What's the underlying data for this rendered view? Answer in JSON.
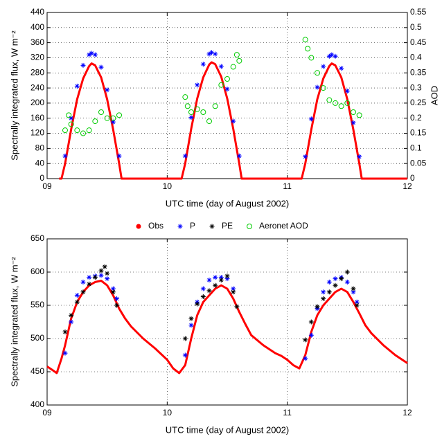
{
  "chart_data": [
    {
      "type": "line",
      "ylabel": "Spectrally integrated flux, W m⁻²",
      "xlabel": "UTC time (day of August 2002)",
      "y2label": "AOD",
      "grid": true,
      "xlim": [
        9,
        12
      ],
      "xticks": [
        {
          "value": 9,
          "label": "09"
        },
        {
          "value": 10,
          "label": "10"
        },
        {
          "value": 11,
          "label": "11"
        },
        {
          "value": 12,
          "label": "12"
        }
      ],
      "ylim": [
        0,
        440
      ],
      "yticks": [
        0,
        40,
        80,
        120,
        160,
        200,
        240,
        280,
        320,
        360,
        400,
        440
      ],
      "y2lim": [
        0,
        0.55
      ],
      "y2ticks": [
        0,
        0.05,
        0.1,
        0.15,
        0.2,
        0.25,
        0.3,
        0.35,
        0.4,
        0.45,
        0.5,
        0.55
      ],
      "series": [
        {
          "color": "#ff0000",
          "marker": "line",
          "x": [
            9.0,
            9.05,
            9.1,
            9.12,
            9.15,
            9.2,
            9.25,
            9.3,
            9.35,
            9.37,
            9.4,
            9.45,
            9.5,
            9.55,
            9.6,
            9.62,
            9.7,
            9.8,
            9.9,
            10.0,
            10.1,
            10.12,
            10.15,
            10.2,
            10.25,
            10.3,
            10.35,
            10.37,
            10.4,
            10.45,
            10.5,
            10.55,
            10.6,
            10.62,
            10.7,
            10.8,
            10.9,
            11.0,
            11.1,
            11.12,
            11.15,
            11.2,
            11.25,
            11.3,
            11.35,
            11.37,
            11.4,
            11.45,
            11.5,
            11.55,
            11.6,
            11.62,
            11.7,
            11.8,
            11.9,
            12.0
          ],
          "values": [
            null,
            null,
            0,
            0,
            40,
            130,
            210,
            265,
            298,
            305,
            300,
            268,
            210,
            130,
            40,
            0,
            0,
            0,
            0,
            0,
            0,
            0,
            40,
            132,
            212,
            268,
            302,
            308,
            303,
            270,
            212,
            132,
            40,
            0,
            0,
            0,
            0,
            0,
            0,
            0,
            40,
            130,
            210,
            265,
            298,
            305,
            300,
            268,
            210,
            130,
            40,
            0,
            0,
            0,
            0,
            0
          ]
        },
        {
          "color": "#0000ff",
          "marker": "*",
          "x": [
            9.15,
            9.2,
            9.25,
            9.3,
            9.35,
            9.37,
            9.4,
            9.45,
            9.5,
            9.55,
            9.6,
            10.15,
            10.2,
            10.25,
            10.3,
            10.35,
            10.37,
            10.4,
            10.45,
            10.5,
            10.55,
            10.6,
            11.15,
            11.2,
            11.25,
            11.3,
            11.35,
            11.37,
            11.4,
            11.45,
            11.5,
            11.55,
            11.6
          ],
          "values": [
            60,
            160,
            245,
            300,
            328,
            332,
            328,
            295,
            235,
            150,
            60,
            60,
            162,
            248,
            303,
            330,
            334,
            330,
            297,
            237,
            152,
            60,
            58,
            158,
            242,
            297,
            324,
            328,
            324,
            292,
            232,
            148,
            58
          ]
        },
        {
          "name": "Aeronet AOD",
          "color": "#00cc00",
          "marker": "o",
          "axis": "y2",
          "x": [
            9.15,
            9.18,
            9.2,
            9.25,
            9.3,
            9.35,
            9.4,
            9.45,
            9.5,
            9.55,
            9.6,
            10.15,
            10.17,
            10.2,
            10.25,
            10.3,
            10.35,
            10.4,
            10.45,
            10.5,
            10.55,
            10.58,
            10.6,
            11.15,
            11.17,
            11.2,
            11.25,
            11.3,
            11.35,
            11.4,
            11.45,
            11.5,
            11.55,
            11.6
          ],
          "values": [
            0.16,
            0.21,
            0.18,
            0.16,
            0.15,
            0.16,
            0.19,
            0.22,
            0.2,
            0.2,
            0.21,
            0.27,
            0.24,
            0.22,
            0.23,
            0.22,
            0.19,
            0.24,
            0.31,
            0.33,
            0.37,
            0.41,
            0.39,
            0.46,
            0.43,
            0.4,
            0.35,
            0.3,
            0.26,
            0.25,
            0.24,
            0.25,
            0.22,
            0.21
          ]
        }
      ]
    },
    {
      "type": "line",
      "ylabel": "Spectrally integrated flux, W m⁻²",
      "xlabel": "UTC time (day of August 2002)",
      "grid": true,
      "xlim": [
        9,
        12
      ],
      "xticks": [
        {
          "value": 9,
          "label": "09"
        },
        {
          "value": 10,
          "label": "10"
        },
        {
          "value": 11,
          "label": "11"
        },
        {
          "value": 12,
          "label": "12"
        }
      ],
      "ylim": [
        400,
        650
      ],
      "yticks": [
        400,
        450,
        500,
        550,
        600,
        650
      ],
      "series": [
        {
          "name": "Obs",
          "color": "#ff0000",
          "marker": "line",
          "x": [
            9.0,
            9.05,
            9.08,
            9.12,
            9.15,
            9.2,
            9.25,
            9.3,
            9.35,
            9.4,
            9.45,
            9.5,
            9.55,
            9.6,
            9.65,
            9.7,
            9.8,
            9.9,
            10.0,
            10.05,
            10.1,
            10.15,
            10.2,
            10.25,
            10.3,
            10.35,
            10.4,
            10.45,
            10.5,
            10.55,
            10.6,
            10.65,
            10.7,
            10.8,
            10.9,
            10.95,
            11.0,
            11.05,
            11.1,
            11.15,
            11.2,
            11.25,
            11.3,
            11.35,
            11.4,
            11.45,
            11.5,
            11.55,
            11.6,
            11.65,
            11.7,
            11.8,
            11.9,
            12.0
          ],
          "values": [
            458,
            452,
            448,
            470,
            490,
            530,
            555,
            570,
            580,
            585,
            587,
            580,
            565,
            545,
            530,
            518,
            500,
            485,
            468,
            455,
            448,
            460,
            500,
            535,
            555,
            565,
            575,
            580,
            575,
            560,
            540,
            522,
            505,
            490,
            478,
            474,
            468,
            460,
            455,
            475,
            510,
            535,
            550,
            560,
            570,
            575,
            570,
            555,
            538,
            520,
            508,
            490,
            475,
            463
          ]
        },
        {
          "name": "P",
          "color": "#0000ff",
          "marker": "*",
          "x": [
            9.15,
            9.2,
            9.25,
            9.3,
            9.35,
            9.4,
            9.45,
            9.5,
            9.55,
            9.58,
            10.15,
            10.2,
            10.25,
            10.3,
            10.35,
            10.4,
            10.45,
            10.5,
            10.55,
            11.15,
            11.2,
            11.25,
            11.3,
            11.35,
            11.4,
            11.45,
            11.5,
            11.55,
            11.58
          ],
          "values": [
            478,
            525,
            565,
            585,
            592,
            594,
            595,
            590,
            575,
            560,
            475,
            520,
            555,
            575,
            588,
            592,
            592,
            590,
            575,
            470,
            505,
            545,
            570,
            585,
            590,
            592,
            585,
            570,
            555
          ]
        },
        {
          "name": "PE",
          "color": "#000000",
          "marker": "*",
          "x": [
            9.15,
            9.2,
            9.25,
            9.3,
            9.35,
            9.4,
            9.45,
            9.48,
            9.5,
            9.55,
            9.58,
            10.15,
            10.2,
            10.25,
            10.3,
            10.35,
            10.4,
            10.45,
            10.5,
            10.55,
            10.58,
            11.15,
            11.2,
            11.25,
            11.3,
            11.35,
            11.4,
            11.45,
            11.5,
            11.55,
            11.58
          ],
          "values": [
            510,
            535,
            555,
            570,
            582,
            592,
            602,
            608,
            598,
            570,
            550,
            500,
            530,
            552,
            563,
            572,
            580,
            588,
            594,
            570,
            548,
            498,
            525,
            548,
            560,
            570,
            580,
            590,
            600,
            575,
            550
          ]
        }
      ]
    }
  ]
}
